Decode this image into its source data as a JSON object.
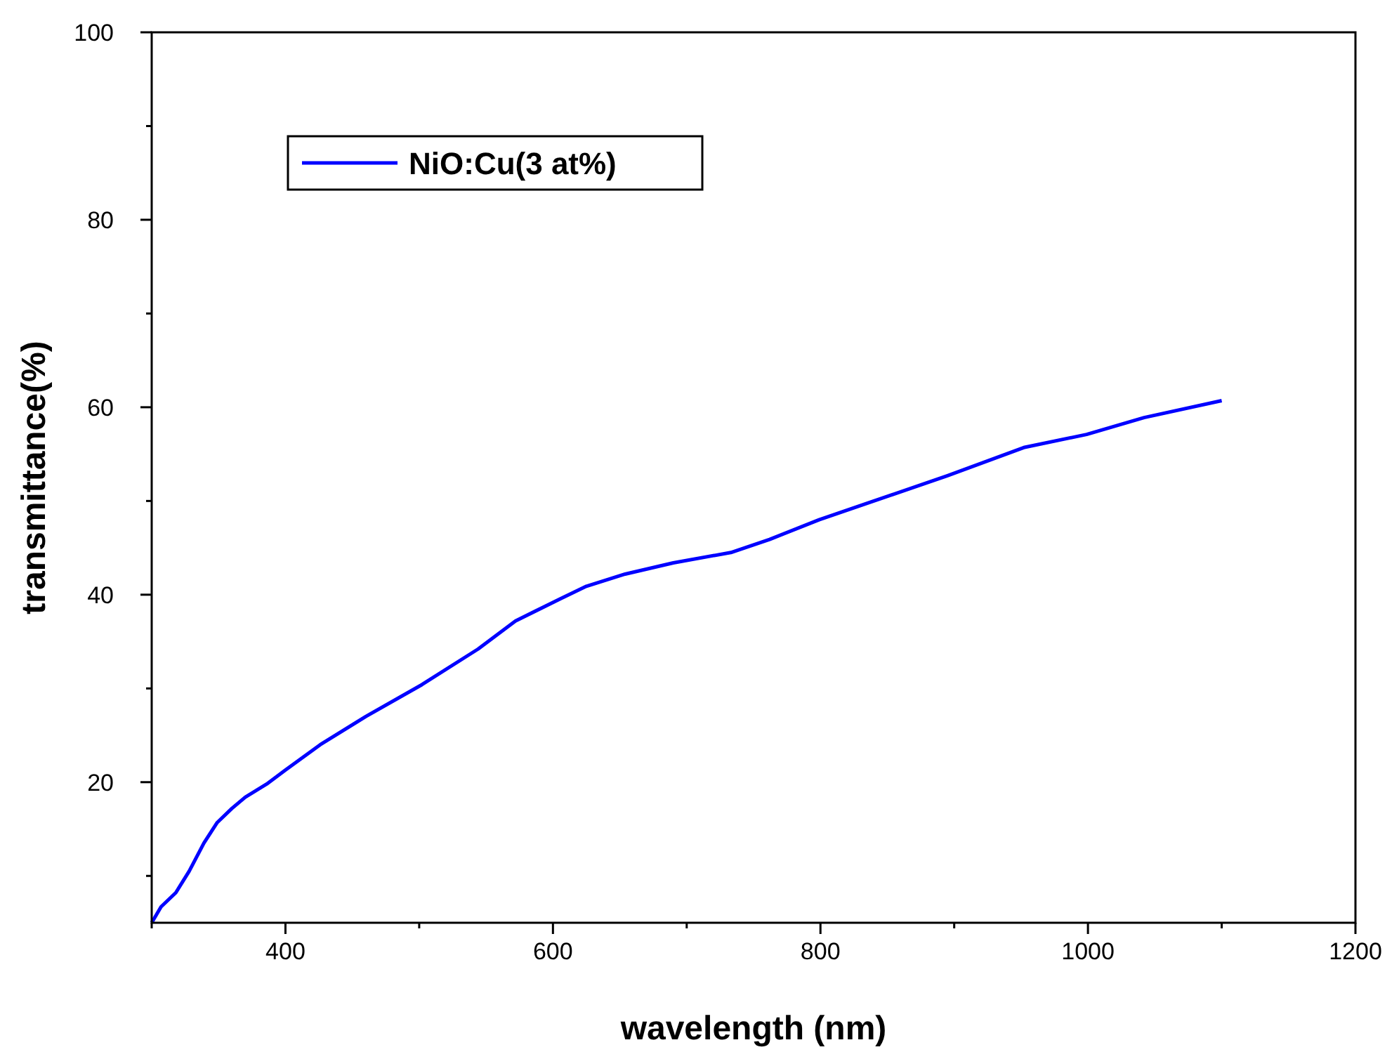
{
  "chart_data": {
    "type": "line",
    "xlabel": "wavelength (nm)",
    "ylabel": "transmittance(%)",
    "xlim": [
      300,
      1200
    ],
    "ylim": [
      5,
      100
    ],
    "xticks": [
      400,
      600,
      800,
      1000,
      1200
    ],
    "yticks": [
      20,
      40,
      60,
      80,
      100
    ],
    "grid": false,
    "legend": "top left",
    "line_style": "solid",
    "series": [
      {
        "name": "NiO:Cu(3 at%)",
        "color": "#0000ff",
        "x": [
          300,
          307,
          318,
          328,
          339,
          349,
          360,
          370,
          386,
          400,
          426,
          460,
          502,
          544,
          572,
          606,
          625,
          654,
          690,
          733,
          762,
          799,
          838,
          895,
          952,
          999,
          1042,
          1100
        ],
        "values": [
          5,
          6.7,
          8.2,
          10.5,
          13.5,
          15.7,
          17.2,
          18.4,
          19.8,
          21.3,
          24,
          27,
          30.4,
          34.2,
          37.2,
          39.6,
          40.9,
          42.2,
          43.4,
          44.5,
          45.9,
          48,
          49.9,
          52.7,
          55.7,
          57.1,
          58.9,
          60.7
        ]
      }
    ]
  }
}
